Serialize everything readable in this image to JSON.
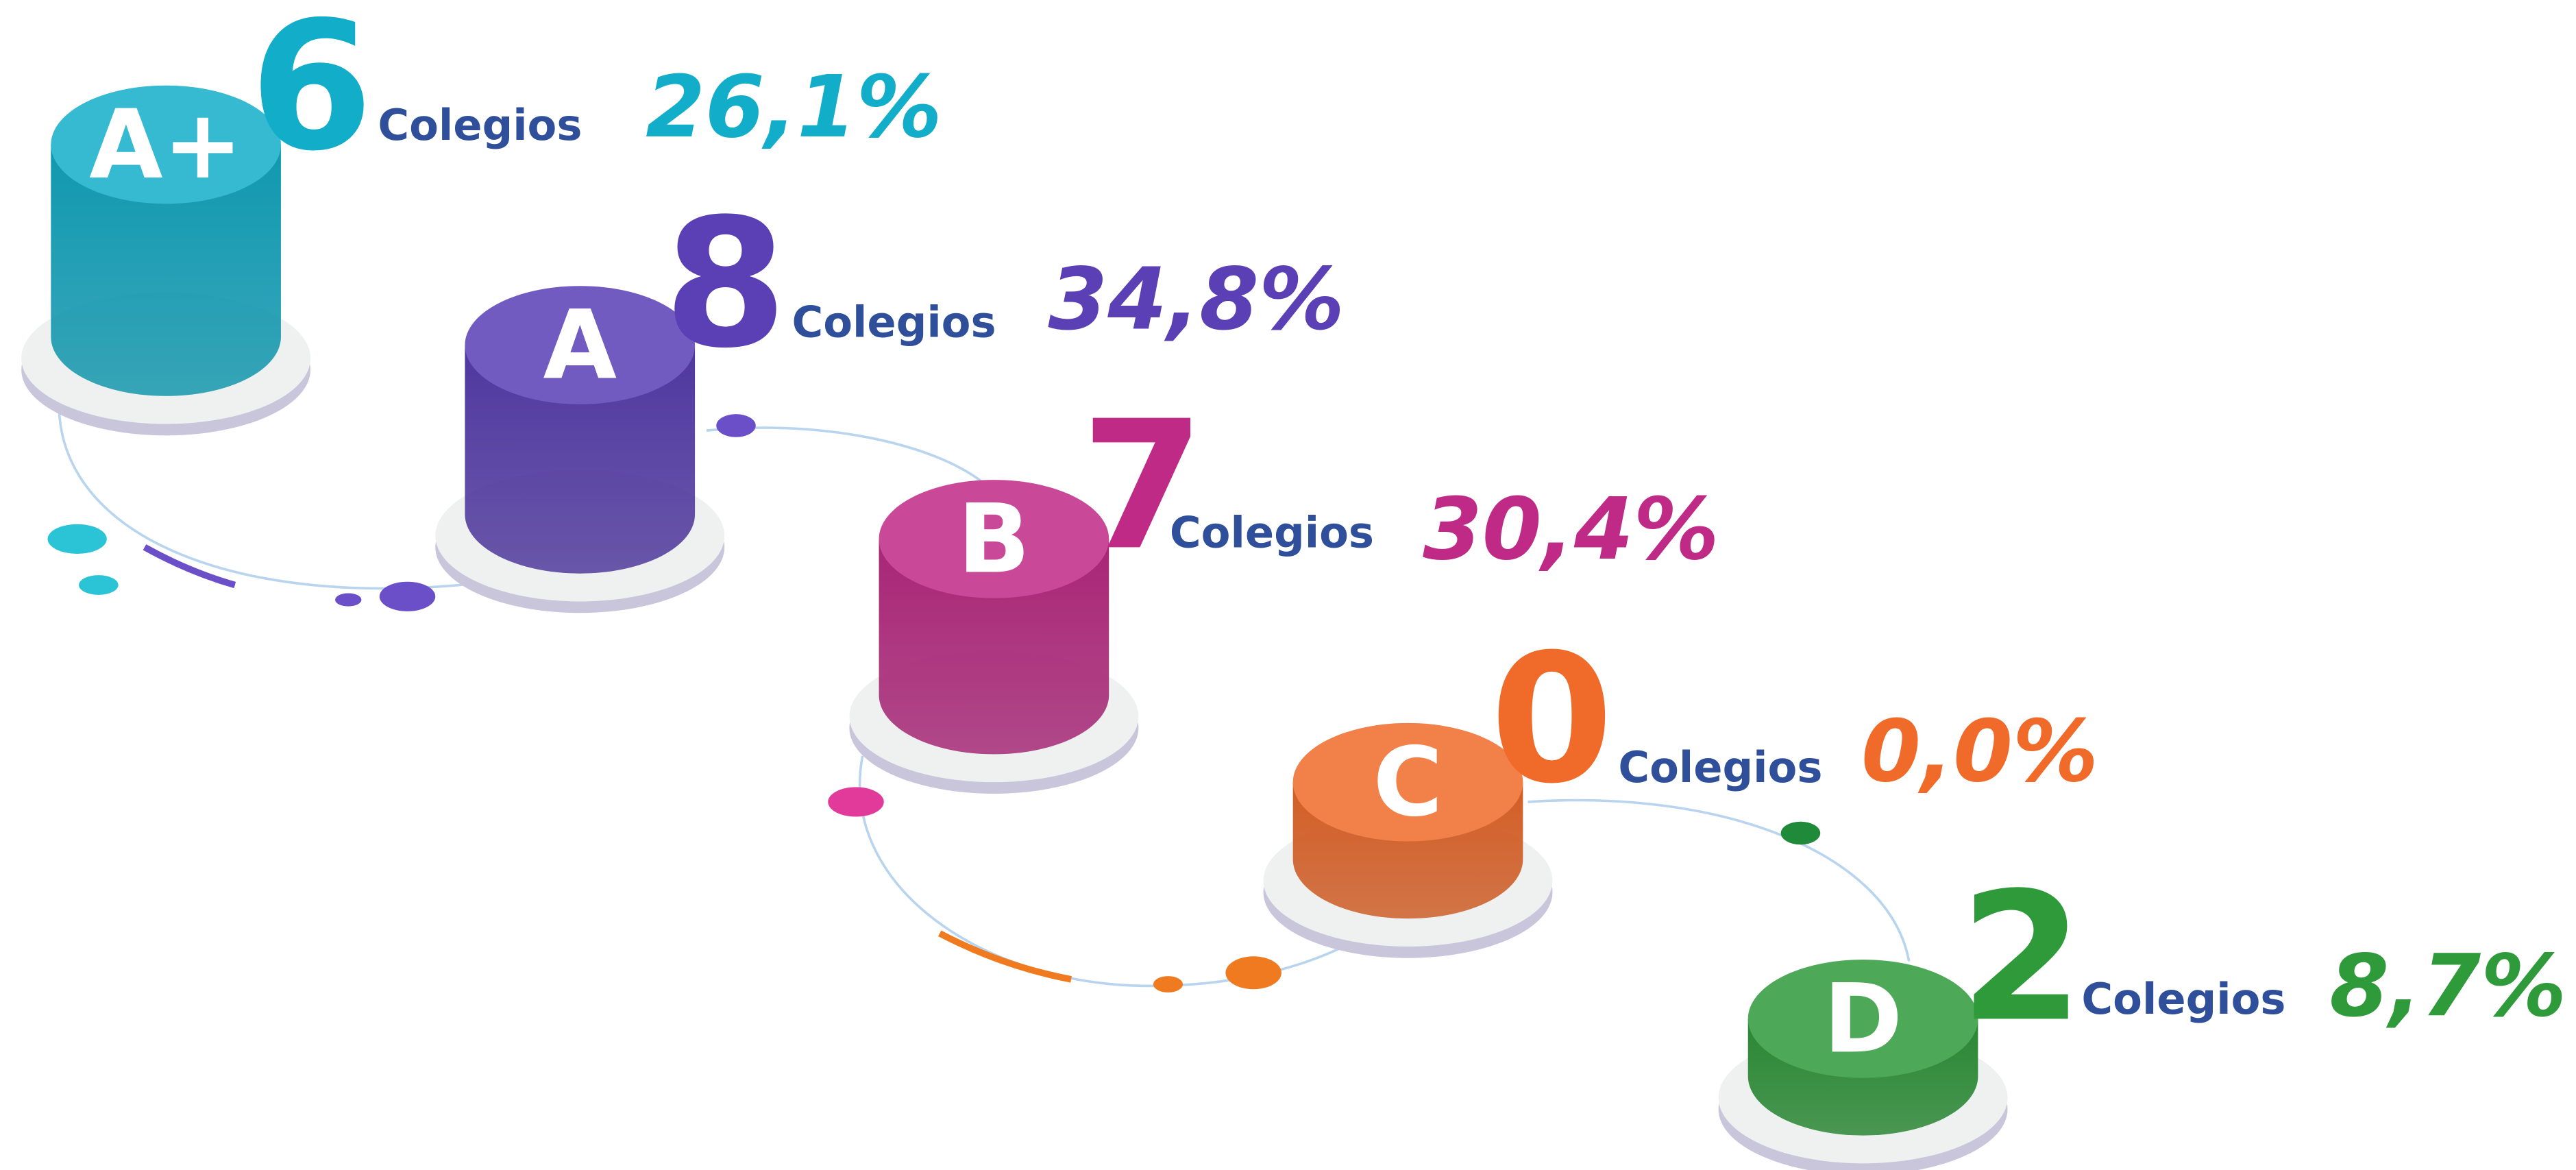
{
  "items": [
    {
      "grade": "A+",
      "count": "6",
      "unit": "Colegios",
      "percent": "26,1%",
      "color": "#12aec9"
    },
    {
      "grade": "A",
      "count": "8",
      "unit": "Colegios",
      "percent": "34,8%",
      "color": "#5a3fb5"
    },
    {
      "grade": "B",
      "count": "7",
      "unit": "Colegios",
      "percent": "30,4%",
      "color": "#c02a87"
    },
    {
      "grade": "C",
      "count": "0",
      "unit": "Colegios",
      "percent": "0,0%",
      "color": "#f06a2a"
    },
    {
      "grade": "D",
      "count": "2",
      "unit": "Colegios",
      "percent": "8,7%",
      "color": "#2e9a3a"
    }
  ]
}
